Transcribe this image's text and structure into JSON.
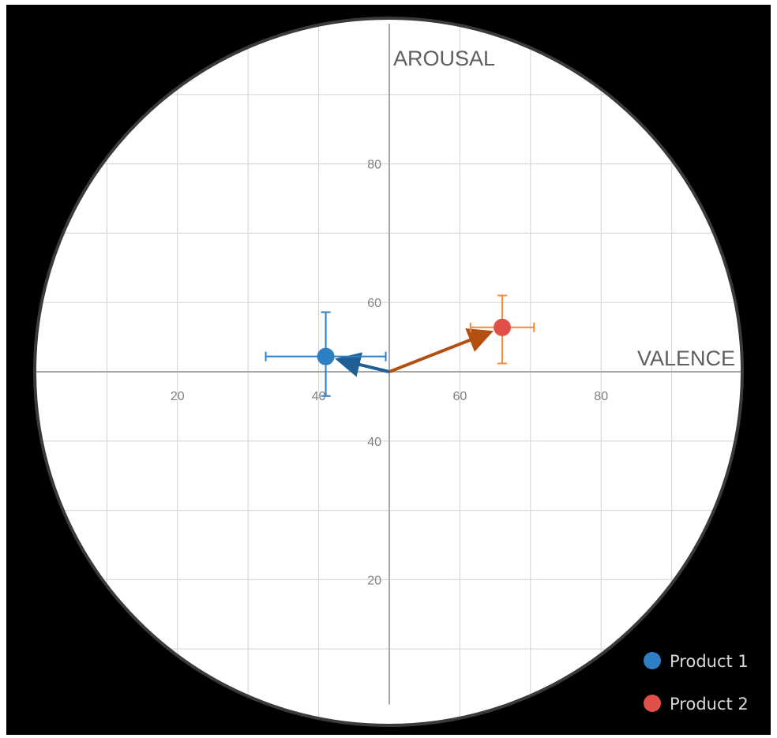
{
  "chart_data": {
    "type": "scatter",
    "xlabel": "VALENCE",
    "ylabel": "AROUSAL",
    "xlim": [
      0,
      100
    ],
    "ylim": [
      0,
      100
    ],
    "x_ticks": [
      "20",
      "40",
      "60",
      "80"
    ],
    "y_ticks": [
      "80",
      "60",
      "40",
      "20"
    ],
    "origin": [
      50,
      50
    ],
    "grid": true,
    "circular_plot_area": true,
    "legend_position": "bottom-right",
    "series": [
      {
        "name": "Product 1",
        "color": "#2e7fc4",
        "arrow_color": "#1f5f96",
        "x": 41,
        "y": 52.2,
        "x_err": [
          32.5,
          49.5
        ],
        "y_err": [
          46.5,
          58.6
        ]
      },
      {
        "name": "Product 2",
        "color": "#e05048",
        "error_color": "#f28c3c",
        "arrow_color": "#b34f10",
        "x": 66,
        "y": 56.4,
        "x_err": [
          61.5,
          70.5
        ],
        "y_err": [
          51.2,
          61.0
        ]
      }
    ]
  }
}
